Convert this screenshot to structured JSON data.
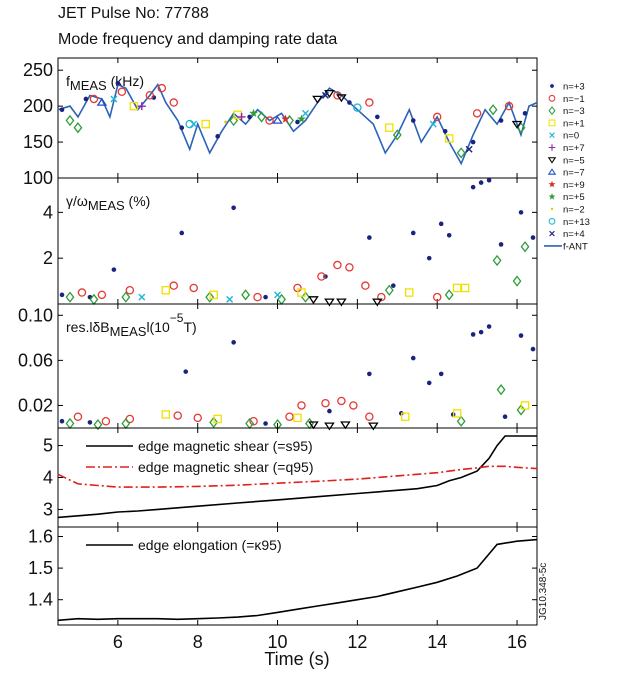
{
  "figure": {
    "title": "JET Pulse No: 77788",
    "subtitle": "Mode frequency and damping rate data",
    "xlabel": "Time (s)",
    "credit": "JG10.348-5c"
  },
  "chart_data": [
    {
      "type": "scatter-line",
      "label": [
        {
          "text": "f"
        },
        {
          "text": "MEAS",
          "sub": true
        },
        {
          "text": " (kHz)"
        }
      ],
      "xlim": [
        4.5,
        16.5
      ],
      "ylim": [
        100,
        267
      ],
      "yticks": [
        100,
        150,
        200,
        250
      ],
      "legend": "outside right",
      "series": [
        {
          "name": "n=+3",
          "color": "#1a237e",
          "marker": "dot",
          "x": [
            4.6,
            5.2,
            6.0,
            6.9,
            7.6,
            8.5,
            9.3,
            10.5,
            11.8,
            12.5,
            13.4,
            14.2,
            14.9,
            15.6,
            16.2
          ],
          "values": [
            195,
            210,
            232,
            212,
            170,
            158,
            185,
            178,
            205,
            185,
            180,
            165,
            150,
            180,
            190
          ]
        },
        {
          "name": "n=−1",
          "color": "#e53935",
          "marker": "circle",
          "x": [
            5.4,
            6.1,
            6.8,
            7.1,
            7.4,
            9.8,
            11.5,
            12.3,
            14.0,
            15.0,
            15.8
          ],
          "values": [
            210,
            220,
            215,
            225,
            205,
            180,
            215,
            205,
            185,
            190,
            200
          ]
        },
        {
          "name": "n=−3",
          "color": "#2e9d3a",
          "marker": "diamond",
          "x": [
            4.8,
            5.0,
            8.9,
            9.6,
            10.3,
            13.0,
            14.6,
            15.4,
            16.1
          ],
          "values": [
            180,
            170,
            180,
            185,
            180,
            160,
            135,
            195,
            170
          ]
        },
        {
          "name": "n=+1",
          "color": "#f2e000",
          "marker": "square",
          "x": [
            6.4,
            8.2,
            9.0,
            12.8,
            14.3
          ],
          "values": [
            200,
            175,
            188,
            170,
            155
          ]
        },
        {
          "name": "n=0",
          "color": "#1fb5d6",
          "marker": "x",
          "x": [
            5.9,
            7.9,
            10.7,
            13.9
          ],
          "values": [
            210,
            175,
            190,
            175
          ]
        },
        {
          "name": "n=+7",
          "color": "#8e24aa",
          "marker": "plus",
          "x": [
            6.6,
            9.1
          ],
          "values": [
            200,
            185
          ]
        },
        {
          "name": "n=−5",
          "color": "#000000",
          "marker": "tri-down",
          "x": [
            11.0,
            11.3,
            11.6,
            16.0
          ],
          "values": [
            210,
            218,
            212,
            175
          ]
        },
        {
          "name": "n=−7",
          "color": "#1e4fc8",
          "marker": "tri-up",
          "x": [
            5.6,
            10.0
          ],
          "values": [
            205,
            180
          ]
        },
        {
          "name": "n=+9",
          "color": "#d32f2f",
          "marker": "star",
          "x": [
            10.2
          ],
          "values": [
            182
          ]
        },
        {
          "name": "n=+5",
          "color": "#2e9d3a",
          "marker": "star",
          "x": [
            9.4,
            10.6
          ],
          "values": [
            190,
            182
          ]
        },
        {
          "name": "n=−2",
          "color": "#e6c400",
          "marker": "small-dot",
          "x": [
            8.7
          ],
          "values": [
            178
          ]
        },
        {
          "name": "n=+13",
          "color": "#1fb5d6",
          "marker": "circle",
          "x": [
            7.8,
            12.0
          ],
          "values": [
            175,
            198
          ]
        },
        {
          "name": "n=+4",
          "color": "#1a237e",
          "marker": "x",
          "x": [
            11.2,
            14.8
          ],
          "values": [
            215,
            140
          ]
        },
        {
          "name": "f-ANT",
          "color": "#2a63b8",
          "marker": "line",
          "x": [
            4.5,
            4.8,
            5.0,
            5.3,
            5.6,
            5.8,
            6.0,
            6.2,
            6.5,
            6.8,
            7.0,
            7.2,
            7.5,
            7.8,
            8.0,
            8.3,
            8.6,
            8.9,
            9.2,
            9.5,
            9.8,
            10.1,
            10.4,
            10.7,
            11.0,
            11.3,
            11.6,
            12.0,
            12.4,
            12.7,
            13.0,
            13.3,
            13.6,
            14.0,
            14.3,
            14.6,
            14.9,
            15.2,
            15.5,
            15.8,
            16.1,
            16.3,
            16.5
          ],
          "values": [
            195,
            200,
            185,
            215,
            210,
            185,
            230,
            225,
            195,
            215,
            230,
            205,
            180,
            140,
            175,
            135,
            165,
            190,
            175,
            195,
            180,
            190,
            165,
            180,
            205,
            225,
            215,
            195,
            175,
            135,
            160,
            195,
            150,
            185,
            150,
            120,
            160,
            195,
            175,
            205,
            160,
            200,
            205
          ]
        }
      ]
    },
    {
      "type": "scatter",
      "label": [
        {
          "text": "γ/ω"
        },
        {
          "text": "MEAS",
          "sub": true
        },
        {
          "text": " (%)"
        }
      ],
      "xlim": [
        4.5,
        16.5
      ],
      "ylim": [
        0,
        5.5
      ],
      "yticks": [
        2,
        4
      ],
      "series": [
        {
          "color": "#1a237e",
          "marker": "dot",
          "x": [
            4.6,
            5.3,
            5.9,
            7.6,
            8.9,
            9.7,
            11.2,
            12.3,
            12.9,
            13.4,
            13.8,
            14.1,
            14.3,
            14.9,
            15.1,
            15.3,
            15.6,
            16.1,
            16.4
          ],
          "values": [
            0.4,
            0.3,
            1.5,
            3.1,
            4.2,
            0.3,
            1.2,
            2.9,
            0.8,
            3.1,
            2.0,
            3.5,
            3.0,
            5.1,
            5.3,
            5.4,
            2.6,
            4.0,
            2.9
          ]
        },
        {
          "color": "#e53935",
          "marker": "circle",
          "x": [
            5.1,
            5.6,
            6.3,
            7.4,
            7.9,
            9.5,
            10.5,
            11.1,
            11.5,
            11.8,
            12.2,
            12.6,
            14.0
          ],
          "values": [
            0.5,
            0.4,
            0.6,
            0.8,
            0.7,
            0.3,
            0.7,
            1.2,
            1.7,
            1.6,
            0.8,
            0.3,
            0.3
          ]
        },
        {
          "color": "#2e9d3a",
          "marker": "diamond",
          "x": [
            4.8,
            5.4,
            6.2,
            8.3,
            9.2,
            10.1,
            10.7,
            12.8,
            14.3,
            15.5,
            16.0,
            16.2
          ],
          "values": [
            0.3,
            0.2,
            0.3,
            0.3,
            0.4,
            0.2,
            0.3,
            0.6,
            0.4,
            1.9,
            1.0,
            2.5
          ]
        },
        {
          "color": "#f2e000",
          "marker": "square",
          "x": [
            7.2,
            8.4,
            10.6,
            13.3,
            14.5,
            14.7
          ],
          "values": [
            0.6,
            0.4,
            0.5,
            0.5,
            0.7,
            0.7
          ]
        },
        {
          "color": "#000000",
          "marker": "tri-down",
          "x": [
            10.9,
            11.3,
            11.6,
            12.5
          ],
          "values": [
            0.2,
            0.1,
            0.1,
            0.1
          ]
        },
        {
          "color": "#1fb5d6",
          "marker": "x",
          "x": [
            6.6,
            8.8,
            10.0
          ],
          "values": [
            0.3,
            0.2,
            0.4
          ]
        }
      ]
    },
    {
      "type": "scatter",
      "label": [
        {
          "text": "res.lδB"
        },
        {
          "text": "MEAS",
          "sub": true
        },
        {
          "text": "l(10"
        },
        {
          "text": "−5",
          "sup": true
        },
        {
          "text": "T)"
        }
      ],
      "xlim": [
        4.5,
        16.5
      ],
      "ylim": [
        0,
        0.11
      ],
      "yticks": [
        0.02,
        0.06,
        {
          "value": 0.1,
          "label": "0.10"
        }
      ],
      "series": [
        {
          "color": "#1a237e",
          "marker": "dot",
          "x": [
            4.6,
            5.3,
            7.7,
            8.9,
            9.7,
            11.3,
            12.3,
            13.1,
            13.4,
            13.8,
            14.1,
            14.4,
            14.9,
            15.1,
            15.3,
            15.7,
            16.1,
            16.4
          ],
          "values": [
            0.006,
            0.005,
            0.05,
            0.076,
            0.004,
            0.015,
            0.048,
            0.013,
            0.062,
            0.04,
            0.048,
            0.012,
            0.083,
            0.085,
            0.09,
            0.01,
            0.082,
            0.07
          ]
        },
        {
          "color": "#e53935",
          "marker": "circle",
          "x": [
            5.0,
            5.7,
            6.3,
            7.5,
            8.0,
            9.4,
            10.3,
            10.6,
            11.2,
            11.6,
            11.9,
            12.3
          ],
          "values": [
            0.01,
            0.006,
            0.008,
            0.011,
            0.009,
            0.006,
            0.01,
            0.02,
            0.022,
            0.024,
            0.02,
            0.01
          ]
        },
        {
          "color": "#2e9d3a",
          "marker": "diamond",
          "x": [
            4.8,
            5.5,
            6.2,
            8.4,
            9.3,
            10.0,
            10.8,
            14.6,
            15.6,
            16.1
          ],
          "values": [
            0.004,
            0.003,
            0.004,
            0.005,
            0.004,
            0.003,
            0.004,
            0.006,
            0.034,
            0.016
          ]
        },
        {
          "color": "#f2e000",
          "marker": "square",
          "x": [
            7.2,
            8.5,
            10.5,
            13.2,
            14.5,
            16.2
          ],
          "values": [
            0.012,
            0.008,
            0.009,
            0.01,
            0.013,
            0.02
          ]
        },
        {
          "color": "#000000",
          "marker": "tri-down",
          "x": [
            10.9,
            11.3,
            11.7,
            12.4
          ],
          "values": [
            0.003,
            0.002,
            0.003,
            0.002
          ]
        }
      ]
    },
    {
      "type": "line",
      "xlim": [
        4.5,
        16.5
      ],
      "ylim": [
        2.45,
        5.55
      ],
      "yticks": [
        3,
        4,
        5
      ],
      "legend": "upper left",
      "x": [
        4.5,
        5,
        5.5,
        6,
        6.5,
        7,
        8,
        9,
        10,
        11,
        12,
        13,
        13.5,
        14,
        14.3,
        14.6,
        15,
        15.3,
        15.5,
        15.7,
        16,
        16.5
      ],
      "series": [
        {
          "name": "edge magnetic shear (=s95)",
          "color": "#000000",
          "dash": "solid",
          "values": [
            2.75,
            2.8,
            2.85,
            2.92,
            2.95,
            3.0,
            3.1,
            3.2,
            3.3,
            3.4,
            3.5,
            3.6,
            3.65,
            3.75,
            3.9,
            4.0,
            4.2,
            4.6,
            5.0,
            5.3,
            5.3,
            5.3
          ]
        },
        {
          "name": "edge magnetic shear (=q95)",
          "color": "#e0201b",
          "dash": "dash-dot",
          "values": [
            4.1,
            3.8,
            3.75,
            3.7,
            3.7,
            3.7,
            3.72,
            3.76,
            3.82,
            3.88,
            3.95,
            4.05,
            4.1,
            4.15,
            4.2,
            4.25,
            4.3,
            4.35,
            4.35,
            4.35,
            4.32,
            4.28
          ]
        }
      ]
    },
    {
      "type": "line",
      "xlim": [
        4.5,
        16.5
      ],
      "ylim": [
        1.32,
        1.63
      ],
      "yticks": [
        1.4,
        1.5,
        1.6
      ],
      "xticks": [
        6,
        8,
        10,
        12,
        14,
        16
      ],
      "legend": "upper left",
      "x": [
        4.5,
        5,
        5.5,
        6,
        6.5,
        7,
        7.5,
        8,
        8.5,
        9,
        9.5,
        10,
        10.5,
        11,
        11.5,
        12,
        12.5,
        13,
        13.5,
        14,
        14.5,
        15,
        15.2,
        15.5,
        16,
        16.5
      ],
      "series": [
        {
          "name": "edge elongation (=κ95)",
          "color": "#000000",
          "dash": "solid",
          "values": [
            1.335,
            1.34,
            1.338,
            1.34,
            1.34,
            1.34,
            1.338,
            1.34,
            1.342,
            1.345,
            1.35,
            1.36,
            1.37,
            1.38,
            1.39,
            1.4,
            1.41,
            1.425,
            1.44,
            1.455,
            1.475,
            1.5,
            1.53,
            1.575,
            1.585,
            1.59
          ]
        }
      ]
    }
  ]
}
